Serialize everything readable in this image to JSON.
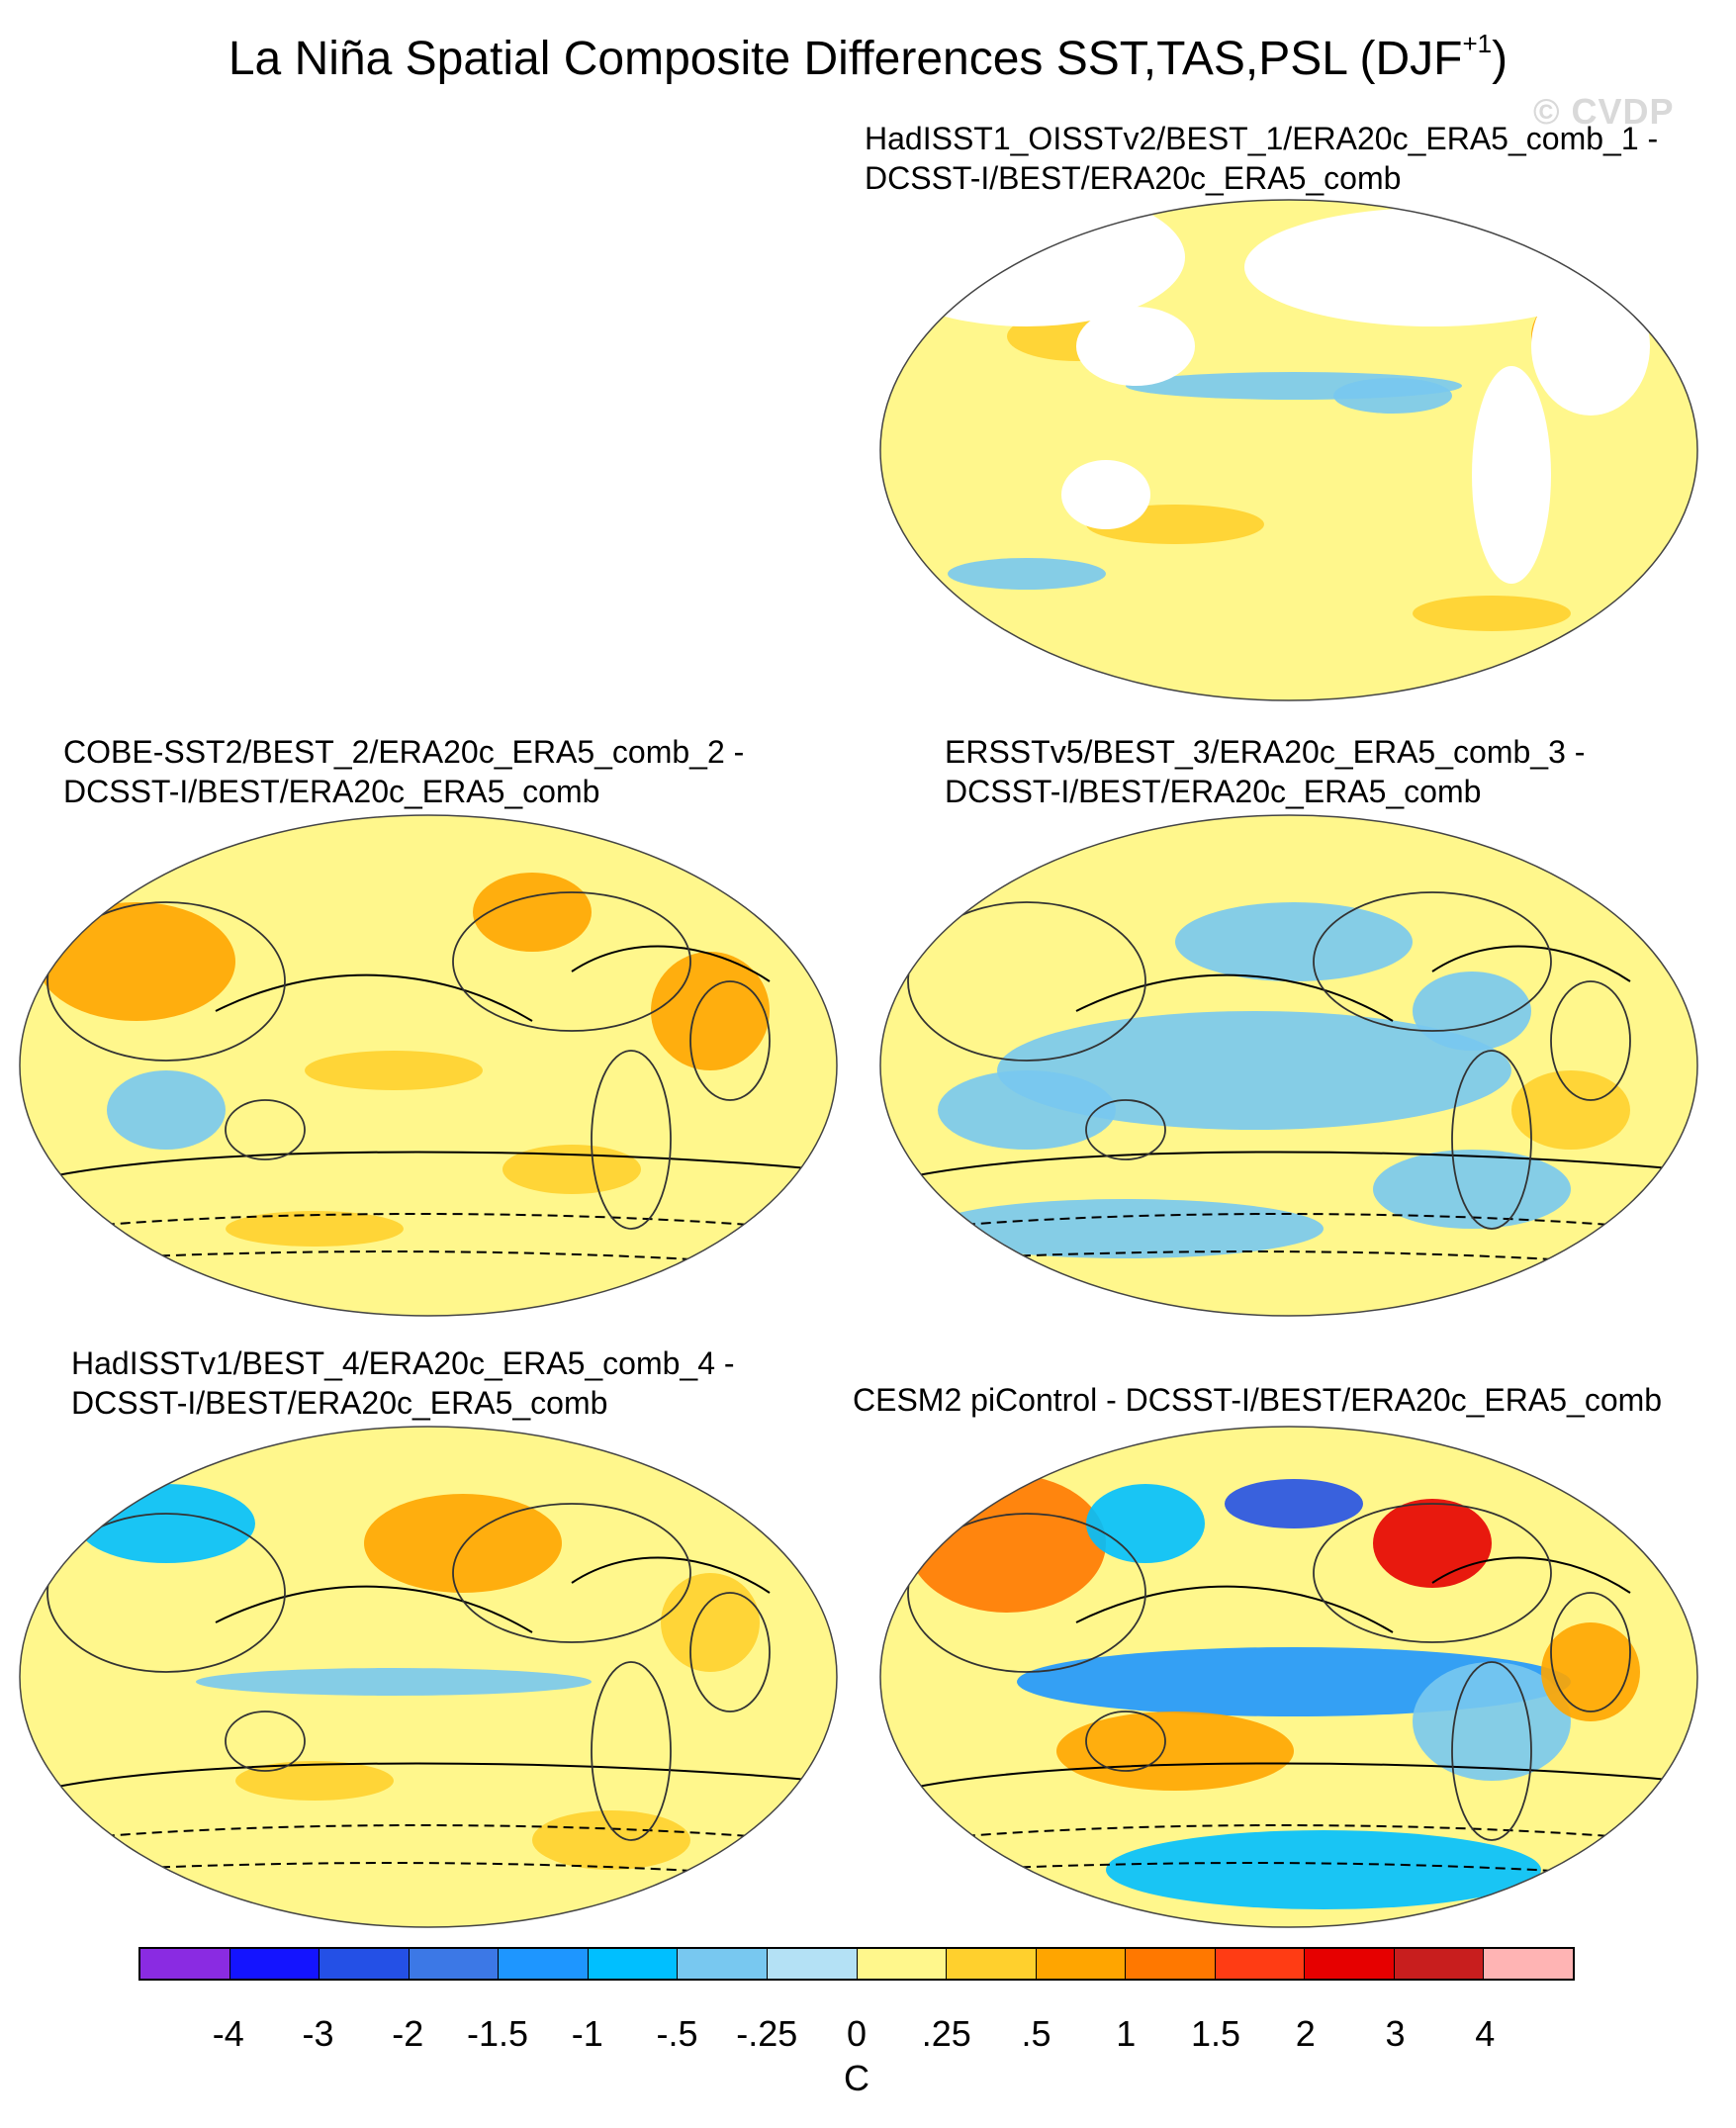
{
  "figure": {
    "title": "La Niña Spatial Composite Differences SST,TAS,PSL (DJF",
    "title_sup": "+1",
    "title_close": ")",
    "watermark": "© CVDP"
  },
  "panels": [
    {
      "id": "p1",
      "line1": "HadISST1_OISSTv2/BEST_1/ERA20c_ERA5_comb_1 -",
      "line2": "DCSST-I/BEST/ERA20c_ERA5_comb",
      "variant": "sst-only"
    },
    {
      "id": "p2",
      "line1": "COBE-SST2/BEST_2/ERA20c_ERA5_comb_2 -",
      "line2": "DCSST-I/BEST/ERA20c_ERA5_comb",
      "variant": "warm"
    },
    {
      "id": "p3",
      "line1": "ERSSTv5/BEST_3/ERA20c_ERA5_comb_3 -",
      "line2": "DCSST-I/BEST/ERA20c_ERA5_comb",
      "variant": "cool"
    },
    {
      "id": "p4",
      "line1": "HadISSTv1/BEST_4/ERA20c_ERA5_comb_4 -",
      "line2": "DCSST-I/BEST/ERA20c_ERA5_comb",
      "variant": "warm2"
    },
    {
      "id": "p5",
      "line1": "CESM2 piControl - DCSST-I/BEST/ERA20c_ERA5_comb",
      "line2": "",
      "variant": "strong"
    }
  ],
  "colorbar": {
    "units": "C",
    "labels": [
      "-4",
      "-3",
      "-2",
      "-1.5",
      "-1",
      "-.5",
      "-.25",
      "0",
      ".25",
      ".5",
      "1",
      "1.5",
      "2",
      "3",
      "4"
    ],
    "colors": [
      "#8a2be2",
      "#1414ff",
      "#2450e6",
      "#3c78e6",
      "#1e96ff",
      "#00bfff",
      "#78c8f0",
      "#b4e1f5",
      "#fff78c",
      "#ffd02d",
      "#ffa500",
      "#ff7800",
      "#ff3c14",
      "#e60000",
      "#c81e1e",
      "#ffb4b4"
    ]
  }
}
